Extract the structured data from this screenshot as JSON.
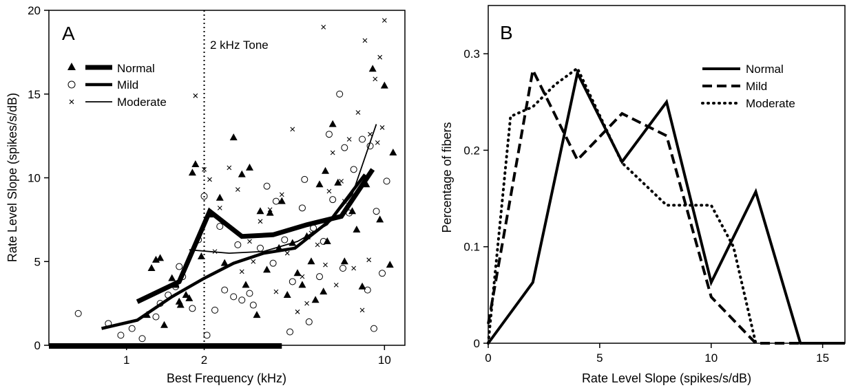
{
  "chart_data": [
    {
      "panel": "A",
      "type": "scatter",
      "title": "",
      "xlabel": "Best Frequency (kHz)",
      "ylabel": "Rate Level Slope (spikes/s/dB)",
      "xscale": "log",
      "xlim": [
        0.5,
        12
      ],
      "ylim": [
        0,
        20
      ],
      "xticks": [
        1,
        2,
        10
      ],
      "xtick_labels": [
        "1",
        "2",
        "10"
      ],
      "yticks": [
        0,
        5,
        10,
        15,
        20
      ],
      "ytick_labels": [
        "0",
        "5",
        "10",
        "15",
        "20"
      ],
      "annotation": {
        "text": "2 kHz Tone",
        "x": 2
      },
      "grid": false,
      "legend_position": "upper-left",
      "series": [
        {
          "name": "Normal",
          "marker": "triangle",
          "line": "thick",
          "trend_x": [
            1.1,
            1.6,
            2.1,
            2.8,
            3.7,
            5.0,
            6.8,
            9.0
          ],
          "trend_y": [
            2.6,
            3.8,
            8.0,
            6.5,
            6.6,
            7.2,
            7.7,
            10.5
          ],
          "points": [
            [
              1.3,
              5.1
            ],
            [
              1.35,
              5.2
            ],
            [
              1.5,
              4.0
            ],
            [
              1.55,
              3.6
            ],
            [
              1.6,
              2.6
            ],
            [
              1.62,
              2.4
            ],
            [
              1.7,
              3.0
            ],
            [
              1.75,
              2.8
            ],
            [
              1.8,
              10.3
            ],
            [
              1.85,
              10.8
            ],
            [
              2.1,
              7.8
            ],
            [
              2.3,
              8.8
            ],
            [
              2.6,
              12.4
            ],
            [
              2.8,
              10.2
            ],
            [
              3.0,
              10.6
            ],
            [
              3.3,
              8.0
            ],
            [
              3.6,
              7.9
            ],
            [
              4.0,
              8.6
            ],
            [
              4.2,
              3.0
            ],
            [
              4.6,
              4.3
            ],
            [
              5.0,
              6.5
            ],
            [
              5.2,
              5.0
            ],
            [
              5.6,
              9.6
            ],
            [
              5.9,
              10.4
            ],
            [
              6.3,
              13.2
            ],
            [
              7.0,
              5.0
            ],
            [
              7.5,
              8.0
            ],
            [
              8.5,
              9.6
            ],
            [
              9.0,
              16.5
            ],
            [
              10.0,
              15.5
            ],
            [
              10.5,
              4.8
            ],
            [
              10.8,
              11.5
            ],
            [
              1.2,
              1.8
            ],
            [
              1.4,
              1.2
            ],
            [
              1.95,
              5.3
            ],
            [
              3.2,
              1.8
            ],
            [
              3.5,
              4.5
            ],
            [
              4.8,
              3.6
            ],
            [
              6.6,
              9.7
            ],
            [
              8.2,
              3.5
            ],
            [
              1.25,
              4.6
            ],
            [
              2.9,
              3.6
            ],
            [
              5.4,
              2.7
            ],
            [
              9.6,
              7.5
            ],
            [
              3.9,
              5.8
            ],
            [
              2.4,
              4.9
            ],
            [
              6.0,
              6.2
            ],
            [
              7.8,
              6.9
            ],
            [
              4.4,
              6.1
            ],
            [
              5.8,
              3.2
            ]
          ]
        },
        {
          "name": "Mild",
          "marker": "circle",
          "line": "medium",
          "trend_x": [
            0.8,
            1.1,
            1.5,
            2.0,
            2.6,
            3.4,
            4.5,
            6.2,
            8.4
          ],
          "trend_y": [
            1.0,
            1.5,
            2.9,
            4.0,
            4.9,
            5.5,
            5.8,
            7.5,
            10.2
          ],
          "points": [
            [
              0.65,
              1.9
            ],
            [
              0.85,
              1.3
            ],
            [
              0.95,
              0.6
            ],
            [
              1.05,
              1.0
            ],
            [
              1.15,
              0.4
            ],
            [
              1.3,
              1.7
            ],
            [
              1.45,
              3.0
            ],
            [
              1.55,
              3.5
            ],
            [
              1.65,
              4.1
            ],
            [
              1.8,
              2.2
            ],
            [
              1.9,
              6.3
            ],
            [
              2.0,
              8.9
            ],
            [
              2.05,
              0.6
            ],
            [
              2.2,
              2.1
            ],
            [
              2.4,
              3.3
            ],
            [
              2.6,
              2.9
            ],
            [
              2.8,
              2.7
            ],
            [
              3.0,
              3.1
            ],
            [
              3.3,
              5.8
            ],
            [
              3.5,
              9.5
            ],
            [
              3.8,
              8.6
            ],
            [
              4.1,
              6.3
            ],
            [
              4.4,
              3.8
            ],
            [
              4.8,
              8.2
            ],
            [
              5.3,
              7.0
            ],
            [
              5.8,
              6.2
            ],
            [
              6.3,
              8.7
            ],
            [
              6.7,
              15.0
            ],
            [
              7.0,
              11.8
            ],
            [
              7.6,
              10.5
            ],
            [
              8.2,
              12.3
            ],
            [
              8.8,
              11.9
            ],
            [
              9.3,
              8.0
            ],
            [
              9.8,
              4.3
            ],
            [
              10.2,
              9.8
            ],
            [
              1.35,
              2.5
            ],
            [
              2.3,
              7.1
            ],
            [
              3.1,
              2.4
            ],
            [
              4.3,
              0.8
            ],
            [
              5.6,
              4.1
            ],
            [
              6.9,
              4.6
            ],
            [
              8.6,
              3.3
            ],
            [
              5.1,
              1.4
            ],
            [
              3.7,
              4.9
            ],
            [
              2.7,
              6.0
            ],
            [
              6.1,
              12.6
            ],
            [
              4.9,
              9.9
            ],
            [
              7.3,
              7.9
            ],
            [
              9.1,
              1.0
            ],
            [
              1.6,
              4.7
            ]
          ]
        },
        {
          "name": "Moderate",
          "marker": "x",
          "line": "thin",
          "trend_x": [
            1.75,
            2.5,
            3.4,
            4.6,
            6.0,
            7.5,
            9.3
          ],
          "trend_y": [
            5.7,
            5.5,
            5.6,
            6.2,
            7.2,
            9.0,
            13.2
          ],
          "points": [
            [
              1.85,
              14.9
            ],
            [
              2.0,
              10.5
            ],
            [
              2.1,
              9.9
            ],
            [
              2.3,
              8.2
            ],
            [
              2.5,
              10.6
            ],
            [
              2.7,
              9.3
            ],
            [
              3.0,
              6.2
            ],
            [
              3.3,
              7.4
            ],
            [
              3.6,
              8.1
            ],
            [
              4.0,
              9.0
            ],
            [
              4.4,
              12.9
            ],
            [
              4.8,
              4.1
            ],
            [
              5.2,
              6.7
            ],
            [
              5.8,
              19.0
            ],
            [
              6.3,
              11.5
            ],
            [
              6.8,
              9.8
            ],
            [
              7.3,
              12.3
            ],
            [
              7.9,
              13.9
            ],
            [
              8.4,
              18.2
            ],
            [
              8.8,
              12.6
            ],
            [
              9.2,
              15.9
            ],
            [
              9.6,
              17.2
            ],
            [
              10.0,
              19.4
            ],
            [
              9.4,
              12.1
            ],
            [
              2.2,
              5.6
            ],
            [
              3.8,
              3.2
            ],
            [
              5.0,
              2.5
            ],
            [
              6.5,
              3.6
            ],
            [
              7.6,
              4.6
            ],
            [
              8.2,
              2.1
            ],
            [
              2.8,
              4.4
            ],
            [
              4.2,
              5.5
            ],
            [
              5.5,
              6.0
            ],
            [
              6.1,
              9.2
            ],
            [
              7.0,
              8.6
            ],
            [
              8.7,
              5.1
            ],
            [
              3.1,
              5.0
            ],
            [
              4.6,
              2.0
            ],
            [
              5.9,
              4.8
            ],
            [
              9.8,
              13.0
            ]
          ]
        }
      ],
      "baseline_bar": {
        "from": 0.5,
        "to": 4.0,
        "y": 0
      }
    },
    {
      "panel": "B",
      "type": "line",
      "title": "",
      "xlabel": "Rate Level Slope (spikes/s/dB)",
      "ylabel": "Percentage of fibers",
      "xlim": [
        0,
        16
      ],
      "ylim": [
        0,
        0.35
      ],
      "xticks": [
        0,
        5,
        10,
        15
      ],
      "xtick_labels": [
        "0",
        "5",
        "10",
        "15"
      ],
      "yticks": [
        0,
        0.1,
        0.2,
        0.3
      ],
      "ytick_labels": [
        "0",
        "0.1",
        "0.2",
        "0.3"
      ],
      "grid": false,
      "legend_position": "upper-right",
      "series": [
        {
          "name": "Normal",
          "style": "solid",
          "x": [
            0,
            2,
            4,
            6,
            8,
            10,
            12,
            14,
            16
          ],
          "y": [
            0,
            0.063,
            0.28,
            0.188,
            0.25,
            0.063,
            0.157,
            0,
            0
          ]
        },
        {
          "name": "Mild",
          "style": "dashed",
          "x": [
            0,
            2,
            4,
            6,
            8,
            10,
            12,
            14,
            16
          ],
          "y": [
            0.02,
            0.283,
            0.19,
            0.238,
            0.215,
            0.048,
            0,
            0,
            0
          ]
        },
        {
          "name": "Moderate",
          "style": "dotted",
          "x": [
            0,
            1,
            2,
            3,
            4,
            6,
            8,
            9,
            10,
            11,
            12
          ],
          "y": [
            0,
            0.235,
            0.245,
            0.268,
            0.285,
            0.187,
            0.143,
            0.143,
            0.143,
            0.1,
            0
          ]
        }
      ]
    }
  ],
  "panelA": {
    "letter": "A",
    "annotation_text": "2 kHz Tone",
    "legend": {
      "normal": "Normal",
      "mild": "Mild",
      "moderate": "Moderate"
    }
  },
  "panelB": {
    "letter": "B",
    "legend": {
      "normal": "Normal",
      "mild": "Mild",
      "moderate": "Moderate"
    }
  }
}
